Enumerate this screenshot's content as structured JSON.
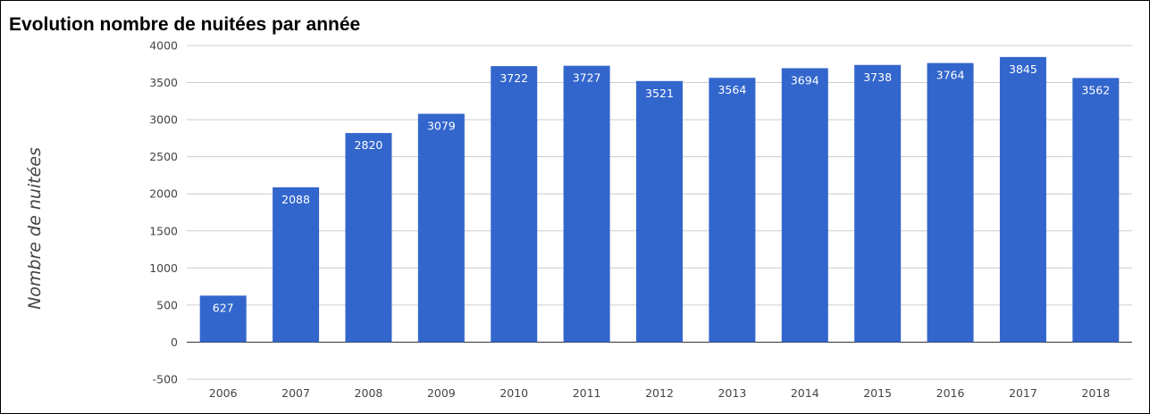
{
  "chart_data": {
    "type": "bar",
    "title": "Evolution nombre de nuitées par année",
    "xlabel": "",
    "ylabel": "Nombre de nuitées",
    "categories": [
      "2006",
      "2007",
      "2008",
      "2009",
      "2010",
      "2011",
      "2012",
      "2013",
      "2014",
      "2015",
      "2016",
      "2017",
      "2018"
    ],
    "values": [
      627,
      2088,
      2820,
      3079,
      3722,
      3727,
      3521,
      3564,
      3694,
      3738,
      3764,
      3845,
      3562
    ],
    "data_labels": [
      "627",
      "2088",
      "2820",
      "3079",
      "3722",
      "3727",
      "3521",
      "3564",
      "3694",
      "3738",
      "3764",
      "3845",
      "3562"
    ],
    "ylim": [
      -500,
      4000
    ],
    "yticks": [
      -500,
      0,
      500,
      1000,
      1500,
      2000,
      2500,
      3000,
      3500,
      4000
    ],
    "ytick_labels": [
      "-500",
      "0",
      "500",
      "1000",
      "1500",
      "2000",
      "2500",
      "3000",
      "3500",
      "4000"
    ],
    "grid": true,
    "legend": "none",
    "bar_color": "#3366cc"
  }
}
